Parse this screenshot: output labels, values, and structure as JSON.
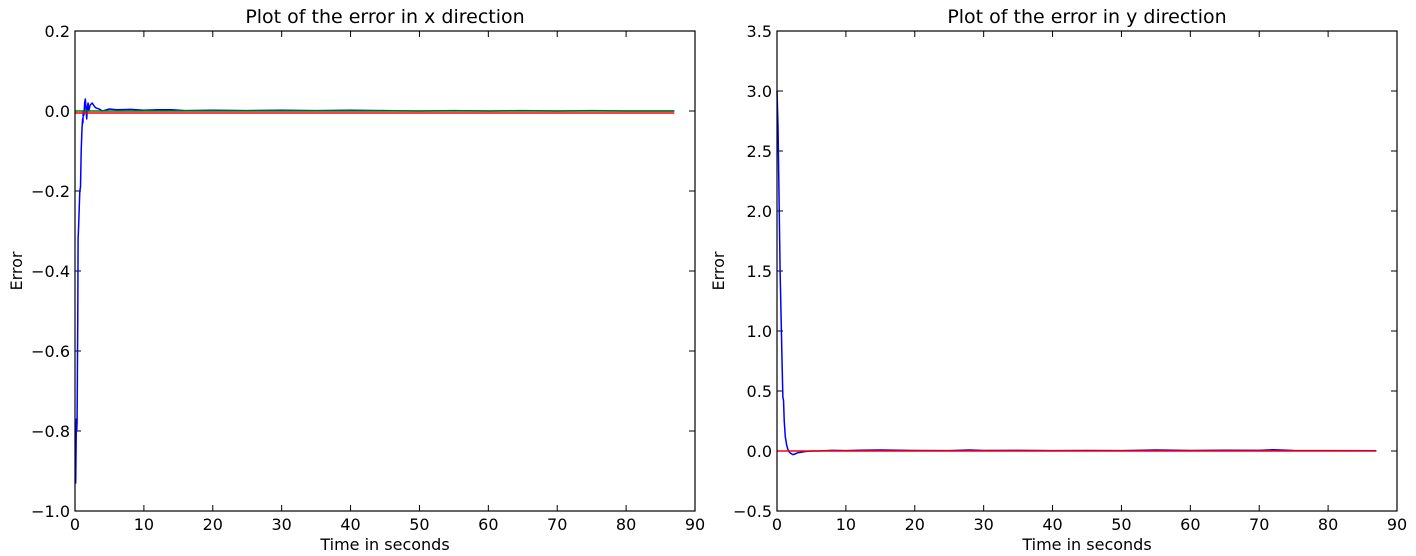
{
  "chart_data": [
    {
      "type": "line",
      "title": "Plot of the error in x direction",
      "xlabel": "Time in seconds",
      "ylabel": "Error",
      "xlim": [
        0,
        90
      ],
      "ylim": [
        -1.0,
        0.2
      ],
      "xticks": [
        "0",
        "10",
        "20",
        "30",
        "40",
        "50",
        "60",
        "70",
        "80",
        "90"
      ],
      "yticks": [
        "−1.0",
        "−0.8",
        "−0.6",
        "−0.4",
        "−0.2",
        "0.0",
        "0.2"
      ],
      "grid": false,
      "series": [
        {
          "color": "#0000ff",
          "x": [
            0,
            0.1,
            0.2,
            0.25,
            0.3,
            0.4,
            0.45,
            0.5,
            0.6,
            0.7,
            0.8,
            0.9,
            1.0,
            1.1,
            1.15,
            1.2,
            1.3,
            1.4,
            1.5,
            1.6,
            1.7,
            1.8,
            1.9,
            2.0,
            2.2,
            2.5,
            2.8,
            3.0,
            3.5,
            4,
            5,
            6,
            8,
            10,
            12,
            14,
            16,
            20,
            25,
            30,
            35,
            40,
            45,
            50,
            55,
            60,
            65,
            70,
            75,
            80,
            87
          ],
          "y": [
            -0.93,
            -0.93,
            -0.77,
            -0.8,
            -0.78,
            -0.52,
            -0.32,
            -0.3,
            -0.25,
            -0.2,
            -0.19,
            -0.1,
            -0.05,
            -0.02,
            -0.03,
            0.0,
            -0.01,
            0.02,
            0.03,
            0.005,
            -0.02,
            0.01,
            0.02,
            0.0,
            0.015,
            0.02,
            0.012,
            0.008,
            0.005,
            0.0,
            0.005,
            0.003,
            0.004,
            0.002,
            0.003,
            0.003,
            0.001,
            0.002,
            0.001,
            0.002,
            0.001,
            0.002,
            0.001,
            0.0,
            0.001,
            0.0,
            0.001,
            0.0,
            0.001,
            0.0,
            0.0
          ]
        },
        {
          "color": "#008000",
          "x": [
            0,
            87
          ],
          "y": [
            0.0,
            0.0
          ]
        },
        {
          "color": "#ff0000",
          "x": [
            0,
            87
          ],
          "y": [
            -0.005,
            -0.005
          ]
        }
      ]
    },
    {
      "type": "line",
      "title": "Plot of the error in y direction",
      "xlabel": "Time in seconds",
      "ylabel": "Error",
      "xlim": [
        0,
        90
      ],
      "ylim": [
        -0.5,
        3.5
      ],
      "xticks": [
        "0",
        "10",
        "20",
        "30",
        "40",
        "50",
        "60",
        "70",
        "80",
        "90"
      ],
      "yticks": [
        "−0.5",
        "0.0",
        "0.5",
        "1.0",
        "1.5",
        "2.0",
        "2.5",
        "3.0",
        "3.5"
      ],
      "grid": false,
      "series": [
        {
          "color": "#0000ff",
          "x": [
            0,
            0.15,
            0.3,
            0.45,
            0.6,
            0.75,
            0.85,
            0.95,
            1.05,
            1.2,
            1.4,
            1.6,
            1.8,
            2.0,
            2.3,
            2.6,
            3.0,
            3.5,
            4,
            5,
            6,
            8,
            10,
            12,
            15,
            20,
            25,
            28,
            30,
            35,
            40,
            45,
            50,
            55,
            60,
            65,
            70,
            72,
            75,
            80,
            87
          ],
          "y": [
            3.0,
            2.7,
            2.1,
            1.5,
            1.1,
            0.7,
            0.45,
            0.42,
            0.25,
            0.12,
            0.05,
            0.01,
            -0.01,
            -0.02,
            -0.03,
            -0.025,
            -0.015,
            -0.01,
            -0.005,
            0.0,
            0.0,
            0.005,
            0.003,
            0.006,
            0.008,
            0.004,
            0.003,
            0.008,
            0.004,
            0.005,
            0.003,
            0.004,
            0.003,
            0.008,
            0.004,
            0.006,
            0.005,
            0.01,
            0.004,
            0.003,
            0.002
          ]
        },
        {
          "color": "#ff0000",
          "x": [
            0,
            87
          ],
          "y": [
            0.0,
            0.0
          ]
        }
      ]
    }
  ]
}
